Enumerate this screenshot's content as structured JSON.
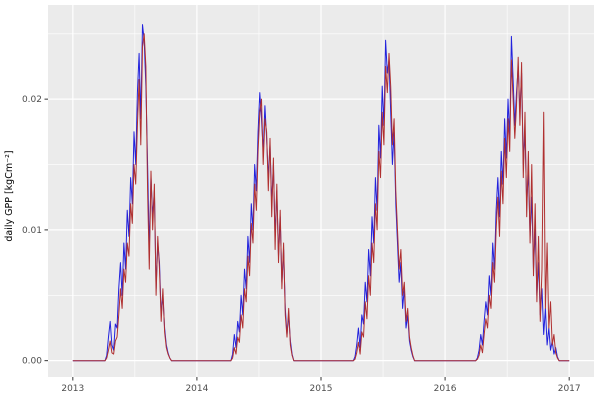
{
  "figure": {
    "background": "#FFFFFF",
    "panel_background": "#EBEBEB",
    "grid_color": "#FFFFFF",
    "axis_text_color": "#4D4D4D",
    "axis_title_color": "#000000",
    "tick_color": "#333333"
  },
  "chart_data": {
    "type": "line",
    "title": "",
    "xlabel": "",
    "ylabel": "daily GPP [kgCm⁻²]",
    "grid": true,
    "legend": "none",
    "xlim": [
      2012.8,
      2017.2
    ],
    "ylim": [
      -0.00125,
      0.0272
    ],
    "x_tick_values": [
      2013,
      2014,
      2015,
      2016,
      2017
    ],
    "x_tick_labels": [
      "2013",
      "2014",
      "2015",
      "2016",
      "2017"
    ],
    "x_minor_ticks": [
      2013.5,
      2014.5,
      2015.5,
      2016.5
    ],
    "y_tick_values": [
      0.0,
      0.01,
      0.02
    ],
    "y_tick_labels": [
      "0.00",
      "0.01",
      "0.02"
    ],
    "y_minor_ticks": [
      0.005,
      0.015,
      0.025
    ],
    "x_start_year": 2013,
    "x_step_days": 5,
    "days_per_year": 365,
    "value_scale": 0.0001,
    "series": [
      {
        "name": "series-blue",
        "color": "#2222DD",
        "values": [
          0,
          0,
          0,
          0,
          0,
          0,
          0,
          0,
          0,
          0,
          0,
          0,
          0,
          0,
          0,
          0,
          0,
          0,
          0,
          0,
          4,
          18,
          30,
          12,
          8,
          28,
          25,
          55,
          75,
          50,
          90,
          70,
          115,
          95,
          140,
          120,
          175,
          150,
          205,
          235,
          185,
          257,
          245,
          210,
          150,
          85,
          140,
          110,
          130,
          55,
          90,
          75,
          35,
          50,
          25,
          12,
          6,
          2,
          0,
          0,
          0,
          0,
          0,
          0,
          0,
          0,
          0,
          0,
          0,
          0,
          0,
          0,
          0,
          0,
          0,
          0,
          0,
          0,
          0,
          0,
          0,
          0,
          0,
          0,
          0,
          0,
          0,
          0,
          0,
          0,
          0,
          0,
          0,
          0,
          5,
          20,
          10,
          30,
          22,
          50,
          35,
          70,
          55,
          95,
          75,
          120,
          100,
          150,
          130,
          175,
          205,
          185,
          160,
          195,
          170,
          140,
          165,
          120,
          150,
          95,
          130,
          80,
          110,
          60,
          85,
          40,
          20,
          35,
          15,
          5,
          0,
          0,
          0,
          0,
          0,
          0,
          0,
          0,
          0,
          0,
          0,
          0,
          0,
          0,
          0,
          0,
          0,
          0,
          0,
          0,
          0,
          0,
          0,
          0,
          0,
          0,
          0,
          0,
          0,
          0,
          0,
          0,
          0,
          0,
          0,
          0,
          3,
          12,
          25,
          10,
          35,
          28,
          60,
          45,
          85,
          65,
          110,
          90,
          140,
          115,
          180,
          155,
          210,
          180,
          245,
          220,
          230,
          190,
          150,
          175,
          120,
          90,
          60,
          75,
          40,
          55,
          25,
          35,
          15,
          8,
          3,
          0,
          0,
          0,
          0,
          0,
          0,
          0,
          0,
          0,
          0,
          0,
          0,
          0,
          0,
          0,
          0,
          0,
          0,
          0,
          0,
          0,
          0,
          0,
          0,
          0,
          0,
          0,
          0,
          0,
          0,
          0,
          0,
          0,
          0,
          0,
          0,
          0,
          2,
          8,
          20,
          12,
          30,
          45,
          35,
          65,
          50,
          90,
          70,
          115,
          140,
          110,
          160,
          135,
          185,
          155,
          200,
          170,
          248,
          215,
          180,
          205,
          225,
          190,
          220,
          150,
          175,
          120,
          145,
          95,
          125,
          70,
          100,
          50,
          75,
          35,
          55,
          20,
          40,
          12,
          25,
          8,
          15,
          5,
          10,
          3,
          0,
          0,
          0,
          0,
          0,
          0,
          0
        ]
      },
      {
        "name": "series-red",
        "color": "#B03030",
        "values": [
          0,
          0,
          0,
          0,
          0,
          0,
          0,
          0,
          0,
          0,
          0,
          0,
          0,
          0,
          0,
          0,
          0,
          0,
          0,
          0,
          2,
          8,
          15,
          6,
          5,
          15,
          18,
          35,
          55,
          40,
          70,
          60,
          90,
          80,
          120,
          105,
          150,
          135,
          180,
          215,
          165,
          240,
          250,
          225,
          130,
          70,
          145,
          100,
          135,
          50,
          95,
          70,
          30,
          55,
          22,
          10,
          5,
          2,
          0,
          0,
          0,
          0,
          0,
          0,
          0,
          0,
          0,
          0,
          0,
          0,
          0,
          0,
          0,
          0,
          0,
          0,
          0,
          0,
          0,
          0,
          0,
          0,
          0,
          0,
          0,
          0,
          0,
          0,
          0,
          0,
          0,
          0,
          0,
          0,
          2,
          10,
          5,
          18,
          14,
          35,
          25,
          55,
          45,
          80,
          65,
          105,
          90,
          135,
          115,
          160,
          190,
          200,
          150,
          185,
          175,
          130,
          170,
          110,
          155,
          85,
          135,
          75,
          115,
          55,
          90,
          35,
          18,
          40,
          12,
          4,
          0,
          0,
          0,
          0,
          0,
          0,
          0,
          0,
          0,
          0,
          0,
          0,
          0,
          0,
          0,
          0,
          0,
          0,
          0,
          0,
          0,
          0,
          0,
          0,
          0,
          0,
          0,
          0,
          0,
          0,
          0,
          0,
          0,
          0,
          0,
          0,
          1,
          6,
          14,
          5,
          22,
          18,
          45,
          32,
          65,
          50,
          90,
          75,
          120,
          100,
          160,
          140,
          190,
          165,
          225,
          205,
          235,
          210,
          165,
          185,
          130,
          100,
          70,
          85,
          50,
          60,
          30,
          40,
          18,
          10,
          4,
          0,
          0,
          0,
          0,
          0,
          0,
          0,
          0,
          0,
          0,
          0,
          0,
          0,
          0,
          0,
          0,
          0,
          0,
          0,
          0,
          0,
          0,
          0,
          0,
          0,
          0,
          0,
          0,
          0,
          0,
          0,
          0,
          0,
          0,
          0,
          0,
          0,
          1,
          4,
          12,
          6,
          20,
          32,
          25,
          50,
          40,
          75,
          60,
          100,
          125,
          95,
          145,
          120,
          170,
          140,
          185,
          160,
          230,
          200,
          170,
          195,
          232,
          180,
          228,
          140,
          190,
          110,
          160,
          90,
          150,
          65,
          120,
          45,
          95,
          30,
          70,
          190,
          40,
          90,
          25,
          45,
          12,
          20,
          6,
          2,
          0,
          0,
          0,
          0,
          0,
          0,
          0
        ]
      }
    ]
  }
}
